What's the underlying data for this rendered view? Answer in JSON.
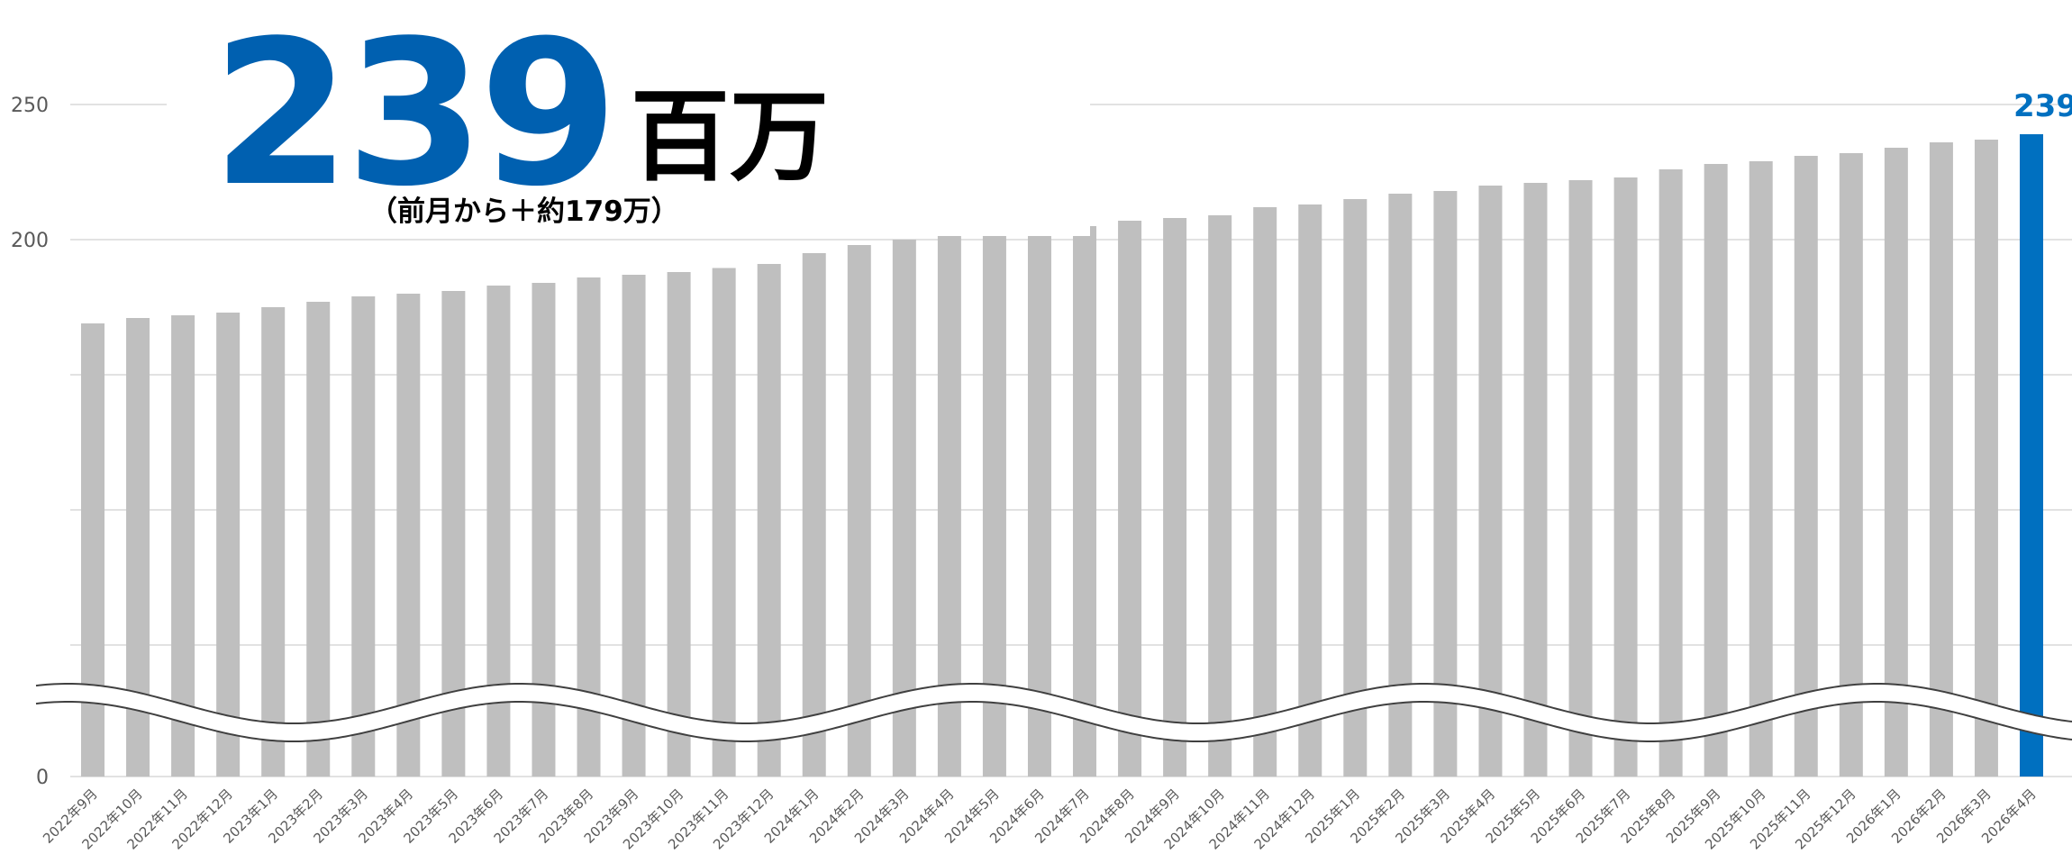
{
  "headline": {
    "value": "239",
    "unit": "百万",
    "sub": "（前月から＋約179万）"
  },
  "colors": {
    "bar": "#bfbfbf",
    "highlight": "#0070c0",
    "headline": "#0060b0",
    "grid": "#d9d9d9",
    "axis_text": "#595959"
  },
  "chart_data": {
    "type": "bar",
    "title": "",
    "xlabel": "",
    "ylabel": "",
    "ylim": [
      0,
      250
    ],
    "axis_break": true,
    "grid": true,
    "yticks": [
      {
        "value": 0,
        "label": "0"
      },
      {
        "value": 200,
        "label": "200"
      },
      {
        "value": 250,
        "label": "250"
      }
    ],
    "categories": [
      "2022年9月",
      "2022年10月",
      "2022年11月",
      "2022年12月",
      "2023年1月",
      "2023年2月",
      "2023年3月",
      "2023年4月",
      "2023年5月",
      "2023年6月",
      "2023年7月",
      "2023年8月",
      "2023年9月",
      "2023年10月",
      "2023年11月",
      "2023年12月",
      "2024年1月",
      "2024年2月",
      "2024年3月",
      "2024年4月",
      "2024年5月",
      "2024年6月",
      "2024年7月",
      "2024年8月",
      "2024年9月",
      "2024年10月",
      "2024年11月",
      "2024年12月",
      "2025年1月",
      "2025年2月",
      "2025年3月",
      "2025年4月",
      "2025年5月",
      "2025年6月",
      "2025年7月",
      "2025年8月",
      "2025年9月",
      "2025年10月",
      "2025年11月",
      "2025年12月",
      "2026年1月",
      "2026年2月",
      "2026年3月",
      "2026年4月"
    ],
    "values": [
      169,
      171,
      172,
      173,
      175,
      177,
      179,
      180,
      181,
      183,
      184,
      186,
      187,
      188,
      189.5,
      191,
      195,
      198,
      200,
      202,
      203,
      204,
      205,
      207,
      208,
      209,
      212,
      213,
      215,
      217,
      218,
      220,
      221,
      222,
      223,
      226,
      228,
      229,
      231,
      232,
      234,
      236,
      237,
      239
    ],
    "highlight_index": 43,
    "highlight_label": "239"
  }
}
